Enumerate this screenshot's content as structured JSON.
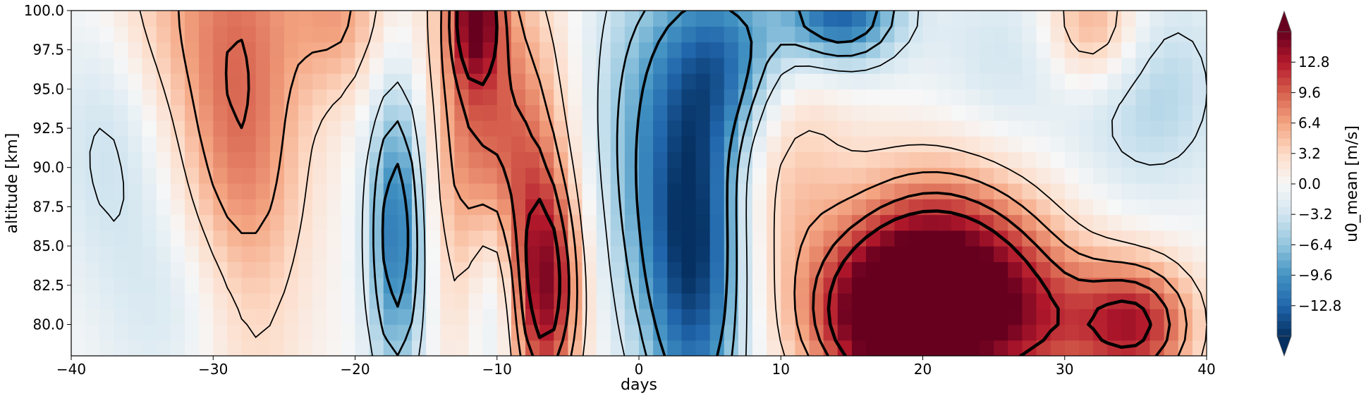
{
  "chart_data": {
    "type": "heatmap",
    "title": "",
    "xlabel": "days",
    "ylabel": "altitude [km]",
    "xlim": [
      -40,
      40
    ],
    "ylim": [
      78,
      100
    ],
    "x_ticks": [
      -40,
      -30,
      -20,
      -10,
      0,
      10,
      20,
      30,
      40
    ],
    "x_tick_labels": [
      "−40",
      "−30",
      "−20",
      "−10",
      "0",
      "10",
      "20",
      "30",
      "40"
    ],
    "y_ticks": [
      80.0,
      82.5,
      85.0,
      87.5,
      90.0,
      92.5,
      95.0,
      97.5,
      100.0
    ],
    "y_tick_labels": [
      "80.0",
      "82.5",
      "85.0",
      "87.5",
      "90.0",
      "92.5",
      "95.0",
      "97.5",
      "100.0"
    ],
    "colorbar": {
      "label": "u0_mean [m/s]",
      "colormap": "RdBu_r",
      "range": [
        -16,
        16
      ],
      "extend": "both",
      "ticks": [
        -12.8,
        -9.6,
        -6.4,
        -3.2,
        0.0,
        3.2,
        6.4,
        9.6,
        12.8
      ],
      "tick_labels": [
        "−12.8",
        "−9.6",
        "−6.4",
        "−3.2",
        "0.0",
        "3.2",
        "6.4",
        "9.6",
        "12.8"
      ],
      "under_color": "#053061",
      "over_color": "#67001f"
    },
    "field_features": [
      {
        "x": -34,
        "y": 100,
        "value": 4,
        "dx": 3,
        "dy": 6
      },
      {
        "x": -28,
        "y": 93,
        "value": 9,
        "dx": 3.2,
        "dy": 14
      },
      {
        "x": -21,
        "y": 100,
        "value": 6,
        "dx": 2.5,
        "dy": 4
      },
      {
        "x": -12,
        "y": 94,
        "value": 7,
        "dx": 2.5,
        "dy": 10
      },
      {
        "x": -11.5,
        "y": 100,
        "value": 11,
        "dx": 1.2,
        "dy": 3
      },
      {
        "x": -8,
        "y": 88,
        "value": 8,
        "dx": 2.5,
        "dy": 9
      },
      {
        "x": -6.5,
        "y": 82,
        "value": 10,
        "dx": 1.8,
        "dy": 5
      },
      {
        "x": -17,
        "y": 86,
        "value": -12,
        "dx": 1.5,
        "dy": 7
      },
      {
        "x": -31,
        "y": 81,
        "value": -4,
        "dx": 4,
        "dy": 5
      },
      {
        "x": -37,
        "y": 92,
        "value": -4,
        "dx": 3,
        "dy": 6
      },
      {
        "x": -10,
        "y": 82,
        "value": -8,
        "dx": 1.5,
        "dy": 5
      },
      {
        "x": 0,
        "y": 92,
        "value": -6,
        "dx": 3,
        "dy": 9
      },
      {
        "x": 4,
        "y": 85,
        "value": -15,
        "dx": 2.5,
        "dy": 9
      },
      {
        "x": 7,
        "y": 97,
        "value": -10,
        "dx": 3,
        "dy": 4
      },
      {
        "x": 14,
        "y": 100,
        "value": -14,
        "dx": 3,
        "dy": 2.5
      },
      {
        "x": 18,
        "y": 80,
        "value": 16,
        "dx": 4,
        "dy": 3.5
      },
      {
        "x": 21,
        "y": 84,
        "value": 13,
        "dx": 5,
        "dy": 4.5
      },
      {
        "x": 27,
        "y": 80,
        "value": 9,
        "dx": 4,
        "dy": 4
      },
      {
        "x": 35,
        "y": 80,
        "value": 12,
        "dx": 3,
        "dy": 3
      },
      {
        "x": 10,
        "y": 93,
        "value": 5,
        "dx": 3,
        "dy": 8
      },
      {
        "x": 32,
        "y": 99,
        "value": 8,
        "dx": 2.5,
        "dy": 3
      },
      {
        "x": 36,
        "y": 95,
        "value": -5,
        "dx": 4,
        "dy": 5
      },
      {
        "x": 26,
        "y": 97,
        "value": -3,
        "dx": 4,
        "dy": 4
      }
    ]
  }
}
